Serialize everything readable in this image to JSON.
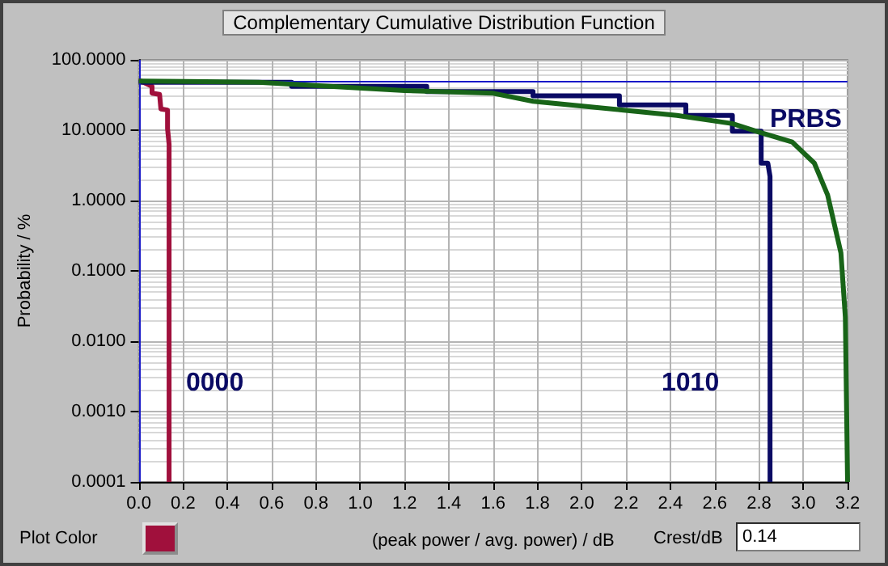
{
  "chart_data": {
    "type": "line",
    "title": "Complementary Cumulative Distribution Function",
    "xlabel": "(peak power / avg. power) / dB",
    "ylabel": "Probability / %",
    "log": "y",
    "xlim": [
      0,
      3.2
    ],
    "ylim": [
      0.0001,
      100
    ],
    "xticks": [
      {
        "value": 0,
        "label": "0.0"
      },
      {
        "value": 0.2,
        "label": "0.2"
      },
      {
        "value": 0.4,
        "label": "0.4"
      },
      {
        "value": 0.6,
        "label": "0.6"
      },
      {
        "value": 0.8,
        "label": "0.8"
      },
      {
        "value": 1,
        "label": "1.0"
      },
      {
        "value": 1.2,
        "label": "1.2"
      },
      {
        "value": 1.4,
        "label": "1.4"
      },
      {
        "value": 1.6,
        "label": "1.6"
      },
      {
        "value": 1.8,
        "label": "1.8"
      },
      {
        "value": 2,
        "label": "2.0"
      },
      {
        "value": 2.2,
        "label": "2.2"
      },
      {
        "value": 2.4,
        "label": "2.4"
      },
      {
        "value": 2.6,
        "label": "2.6"
      },
      {
        "value": 2.8,
        "label": "2.8"
      },
      {
        "value": 3,
        "label": "3.0"
      },
      {
        "value": 3.2,
        "label": "3.2"
      }
    ],
    "yticks": [
      {
        "value": 0.0001,
        "label": "0.0001"
      },
      {
        "value": 0.001,
        "label": "0.0010"
      },
      {
        "value": 0.01,
        "label": "0.0100"
      },
      {
        "value": 0.1,
        "label": "0.1000"
      },
      {
        "value": 1,
        "label": "1.0000"
      },
      {
        "value": 10,
        "label": "10.0000"
      },
      {
        "value": 100,
        "label": "100.0000"
      }
    ],
    "grid": true,
    "marker": "none",
    "series": [
      {
        "color": "#a0103c",
        "x": [
          0,
          0.01,
          0.06,
          0.06,
          0.094,
          0.1,
          0.13,
          0.13,
          0.137,
          0.137
        ],
        "values": [
          50,
          50,
          42,
          33.5,
          32.3,
          20,
          19.3,
          10.5,
          6.3,
          0.0001
        ]
      },
      {
        "color": "#0a0a64",
        "x": [
          0,
          0.69,
          0.69,
          1.3,
          1.3,
          1.78,
          1.78,
          2.17,
          2.17,
          2.47,
          2.47,
          2.68,
          2.68,
          2.81,
          2.81,
          2.84,
          2.85,
          2.85
        ],
        "values": [
          48,
          48,
          42,
          42,
          35.4,
          35.4,
          30.7,
          30.7,
          22.8,
          22.8,
          16.2,
          16.2,
          9.7,
          9.7,
          3.4,
          3.4,
          2.2,
          0.0001
        ]
      },
      {
        "color": "#186418",
        "x": [
          0,
          0.54,
          1.2,
          1.6,
          1.78,
          2.18,
          2.43,
          2.68,
          2.8,
          2.95,
          3.05,
          3.11,
          3.17,
          3.19,
          3.2
        ],
        "values": [
          50,
          48,
          36.6,
          33.5,
          25.8,
          19.4,
          16.2,
          12.4,
          9.4,
          6.8,
          3.4,
          1.2,
          0.18,
          0.022,
          0.0001
        ]
      }
    ],
    "ref_lines": [
      {
        "axis": "y",
        "value": 50,
        "color": "#1818c8"
      },
      {
        "axis": "x",
        "value": 0,
        "color": "#1818c8"
      }
    ],
    "annotations": [
      "0000",
      "1010",
      "PRBS",
      "Plot Color",
      "Crest/dB",
      "0.14"
    ]
  }
}
